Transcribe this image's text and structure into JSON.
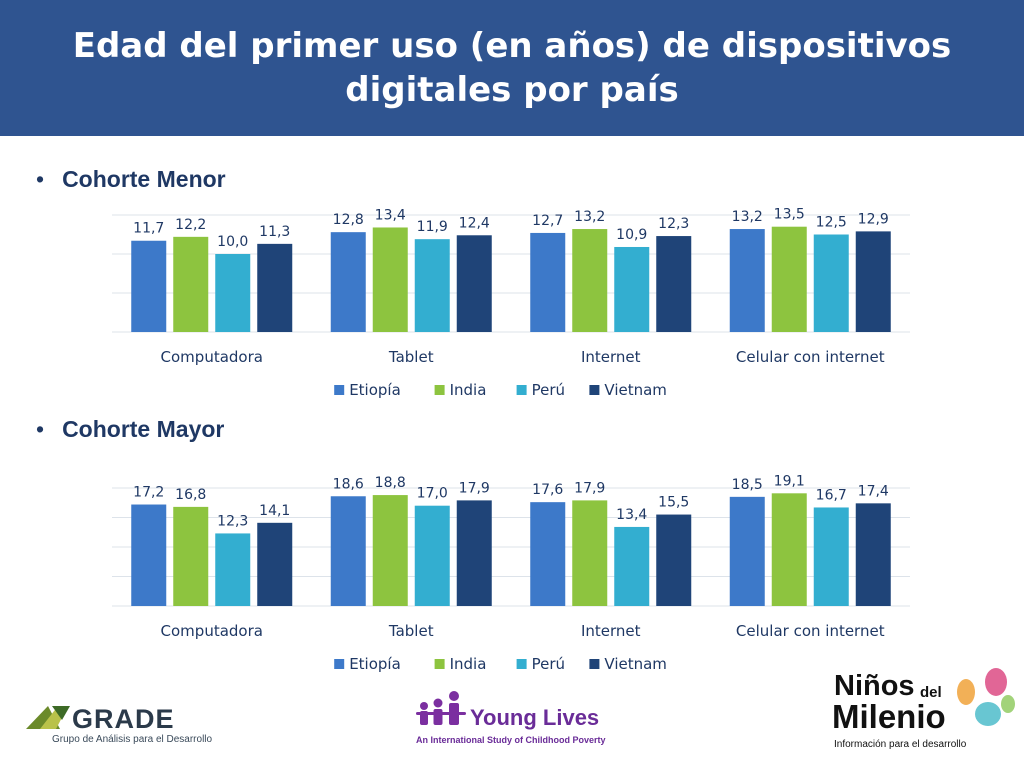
{
  "title": "Edad del primer uso (en años) de dispositivos digitales por país",
  "colors": {
    "header_bg": "#2f5490",
    "series": [
      "#3d79c9",
      "#8dc43f",
      "#33aed0",
      "#1f4478"
    ]
  },
  "chart_data": [
    {
      "type": "bar",
      "title": "Cohorte Menor",
      "categories": [
        "Computadora",
        "Tablet",
        "Internet",
        "Celular con internet"
      ],
      "series": [
        {
          "name": "Etiopía",
          "values": [
            11.7,
            12.8,
            12.7,
            13.2
          ],
          "labels": [
            "11,7",
            "12,8",
            "12,7",
            "13,2"
          ]
        },
        {
          "name": "India",
          "values": [
            12.2,
            13.4,
            13.2,
            13.5
          ],
          "labels": [
            "12,2",
            "13,4",
            "13,2",
            "13,5"
          ]
        },
        {
          "name": "Perú",
          "values": [
            10.0,
            11.9,
            10.9,
            12.5
          ],
          "labels": [
            "10,0",
            "11,9",
            "10,9",
            "12,5"
          ]
        },
        {
          "name": "Vietnam",
          "values": [
            11.3,
            12.4,
            12.3,
            12.9
          ],
          "labels": [
            "11,3",
            "12,4",
            "12,3",
            "12,9"
          ]
        }
      ],
      "ylim": [
        0,
        15
      ],
      "legend": "bottom",
      "grid": true
    },
    {
      "type": "bar",
      "title": "Cohorte Mayor",
      "categories": [
        "Computadora",
        "Tablet",
        "Internet",
        "Celular con internet"
      ],
      "series": [
        {
          "name": "Etiopía",
          "values": [
            17.2,
            18.6,
            17.6,
            18.5
          ],
          "labels": [
            "17,2",
            "18,6",
            "17,6",
            "18,5"
          ]
        },
        {
          "name": "India",
          "values": [
            16.8,
            18.8,
            17.9,
            19.1
          ],
          "labels": [
            "16,8",
            "18,8",
            "17,9",
            "19,1"
          ]
        },
        {
          "name": "Perú",
          "values": [
            12.3,
            17.0,
            13.4,
            16.7
          ],
          "labels": [
            "12,3",
            "17,0",
            "13,4",
            "16,7"
          ]
        },
        {
          "name": "Vietnam",
          "values": [
            14.1,
            17.9,
            15.5,
            17.4
          ],
          "labels": [
            "14,1",
            "17,9",
            "15,5",
            "17,4"
          ]
        }
      ],
      "ylim": [
        0,
        20
      ],
      "legend": "bottom",
      "grid": true
    }
  ],
  "logos": {
    "grade": {
      "name": "GRADE",
      "tagline": "Grupo de Análisis para el Desarrollo"
    },
    "young_lives": {
      "name": "Young Lives",
      "tagline": "An International Study of Childhood Poverty"
    },
    "ninos": {
      "line1": "Niños",
      "small": "del",
      "line2": "Milenio",
      "tagline": "Información para el desarrollo"
    }
  }
}
